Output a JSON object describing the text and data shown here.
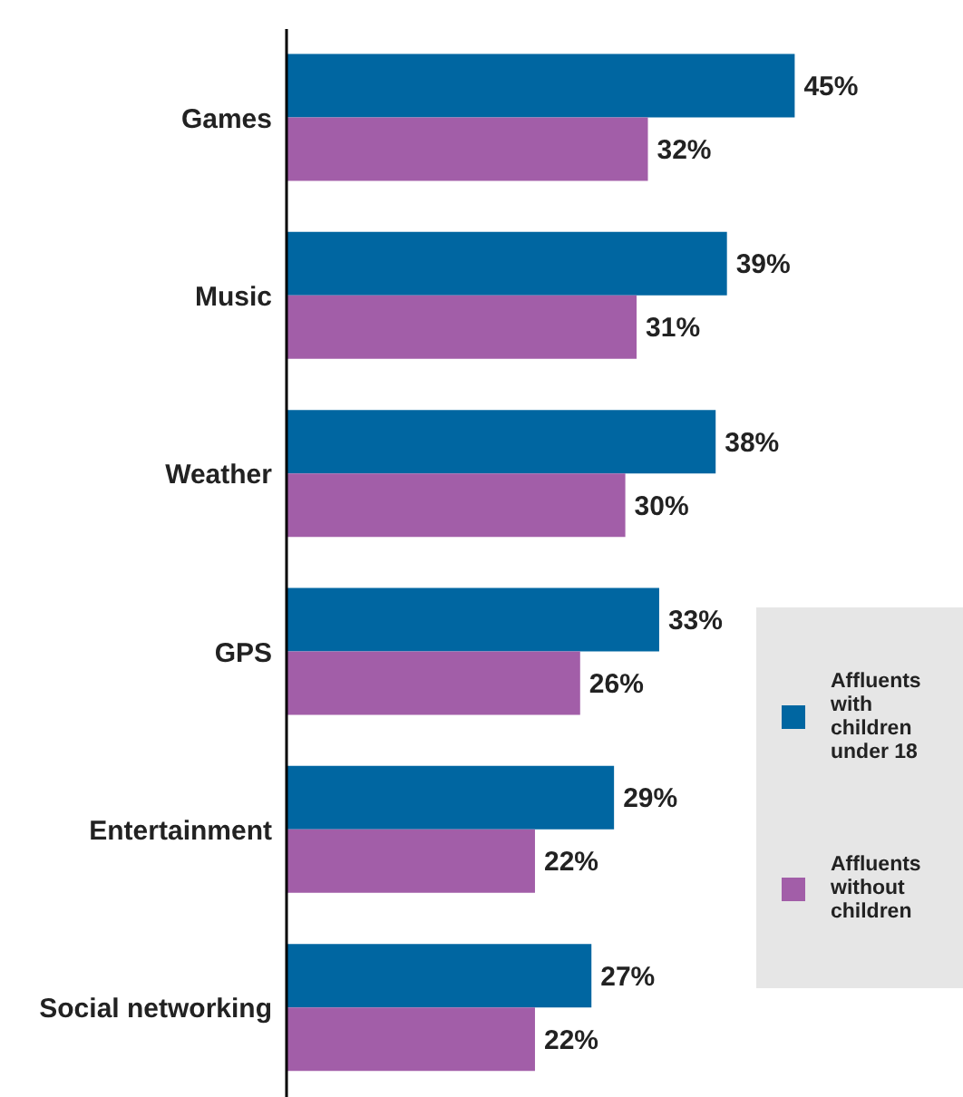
{
  "chart_data": {
    "type": "bar",
    "orientation": "horizontal",
    "categories": [
      "Games",
      "Music",
      "Weather",
      "GPS",
      "Entertainment",
      "Social networking"
    ],
    "series": [
      {
        "name": "Affluents with children under 18",
        "color": "#0066a1",
        "values": [
          45,
          39,
          38,
          33,
          29,
          27
        ],
        "value_labels": [
          "45%",
          "39%",
          "38%",
          "33%",
          "29%",
          "27%"
        ]
      },
      {
        "name": "Affluents without children",
        "color": "#a25ea8",
        "values": [
          32,
          31,
          30,
          26,
          22,
          22
        ],
        "value_labels": [
          "32%",
          "31%",
          "30%",
          "26%",
          "22%",
          "22%"
        ]
      }
    ],
    "legend": "right"
  }
}
